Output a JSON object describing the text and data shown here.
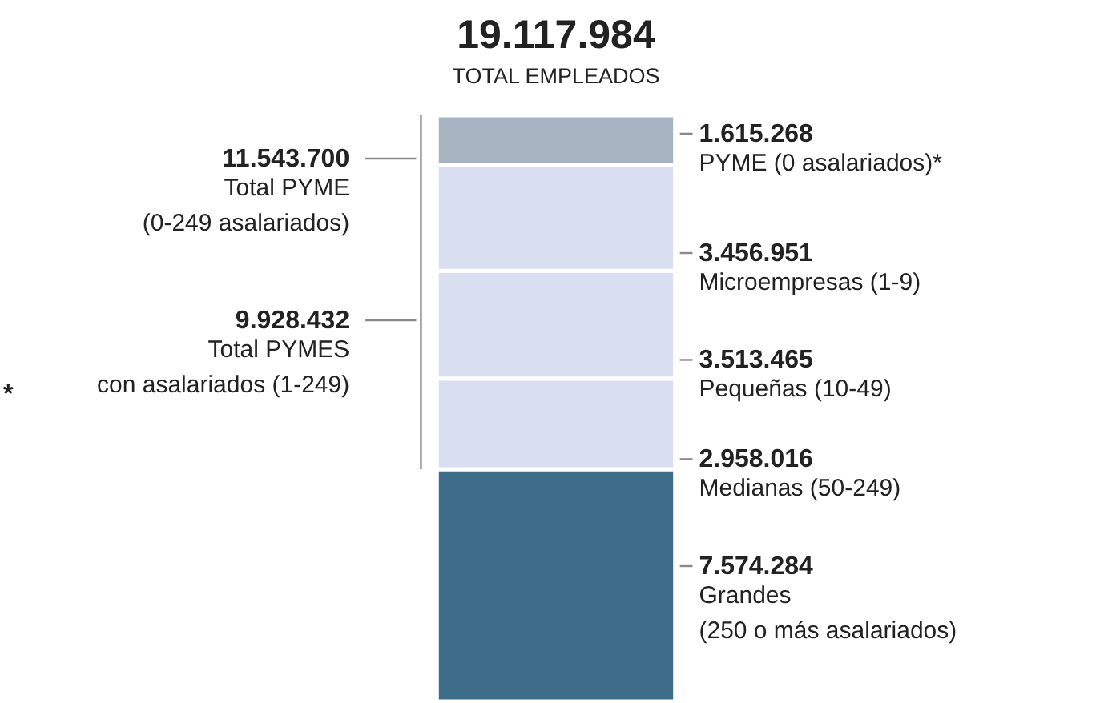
{
  "chart_data": {
    "type": "bar",
    "stacked": true,
    "title": "19.117.984",
    "subtitle": "TOTAL EMPLEADOS",
    "categories": [
      null
    ],
    "series": [
      {
        "name": "Grandes\n(250 o más asalariados)",
        "color": "#3d6d89",
        "values": [
          7574284
        ],
        "value_labels": [
          "7.574.284"
        ]
      },
      {
        "name": "Medianas (50-249)",
        "color": "#d9dff0",
        "values": [
          2958016
        ],
        "value_labels": [
          "2.958.016"
        ]
      },
      {
        "name": "Pequeñas (10-49)",
        "color": "#d9dff0",
        "values": [
          3513465
        ],
        "value_labels": [
          "3.513.465"
        ]
      },
      {
        "name": "Microempresas (1-9)",
        "color": "#d9dff0",
        "values": [
          3456951
        ],
        "value_labels": [
          "3.456.951"
        ]
      },
      {
        "name": "PYME (0 asalariados)*",
        "color": "#a6b3c1",
        "values": [
          1615268
        ],
        "value_labels": [
          "1.615.268"
        ]
      }
    ],
    "annotations": [
      "11.543.700\nTotal PYME\n(0-249 asalariados)",
      "9.928.432\nTotal PYMES\ncon asalariados (1-249)",
      "*"
    ]
  }
}
